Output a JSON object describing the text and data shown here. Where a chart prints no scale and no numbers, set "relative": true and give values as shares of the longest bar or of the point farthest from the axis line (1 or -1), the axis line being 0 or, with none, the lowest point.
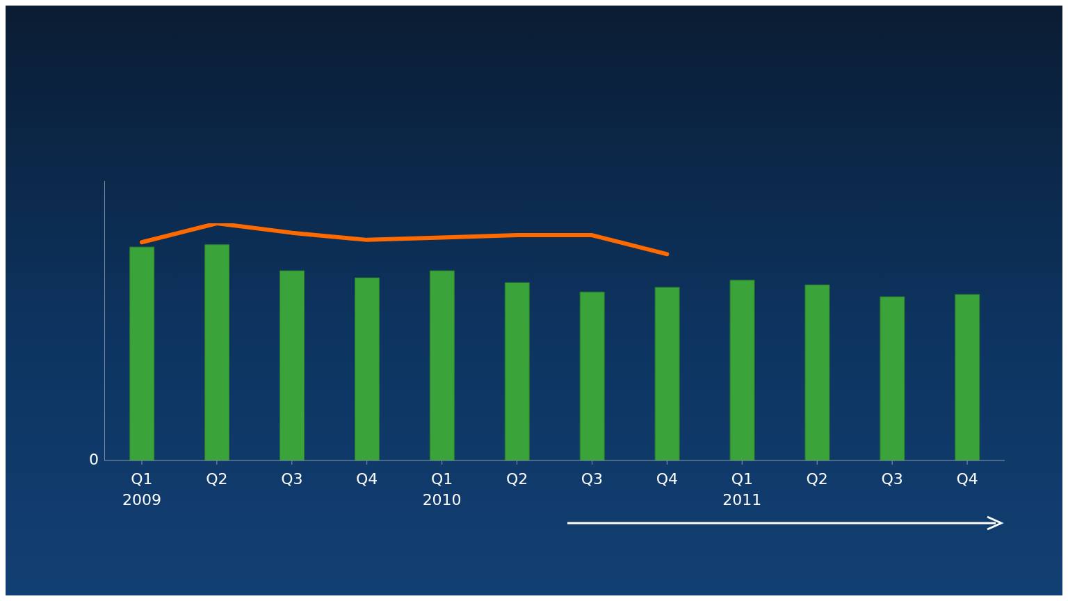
{
  "chart_data": {
    "type": "bar",
    "relative": true,
    "categories": [
      "Q1\n2009",
      "Q2",
      "Q3",
      "Q4",
      "Q1\n2010",
      "Q2",
      "Q3",
      "Q4",
      "Q1\n2011",
      "Q2",
      "Q3",
      "Q4"
    ],
    "series": [
      {
        "color": "#3aa33a",
        "values": [
          0.9,
          0.91,
          0.8,
          0.77,
          0.8,
          0.75,
          0.71,
          0.73,
          0.76,
          0.74,
          0.69,
          0.7
        ]
      },
      {
        "type": "line",
        "color": "#ff6a00",
        "values": [
          0.92,
          1,
          0.96,
          0.93,
          0.94,
          0.95,
          0.95,
          0.87,
          null,
          null,
          null,
          null
        ]
      }
    ],
    "annotations": [
      "0"
    ],
    "grid": false,
    "legend": false,
    "marker": "none",
    "line_style": "solid"
  }
}
